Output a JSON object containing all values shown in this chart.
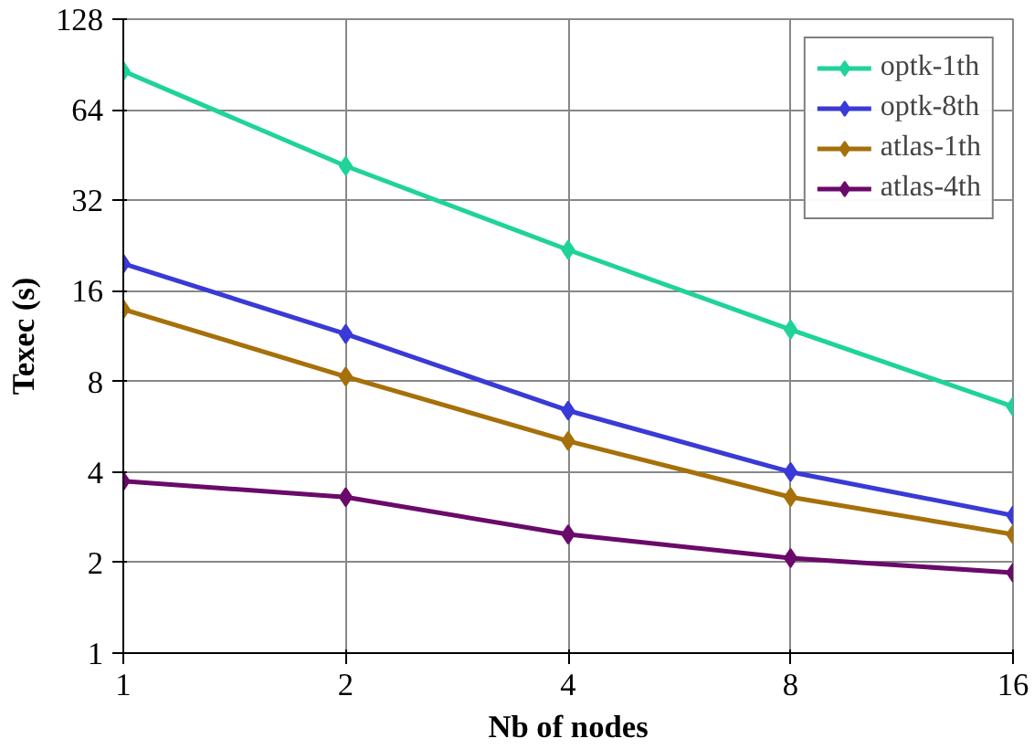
{
  "chart_data": {
    "type": "line",
    "xlabel": "Nb of nodes",
    "ylabel": "Texec (s)",
    "x": [
      1,
      2,
      4,
      8,
      16
    ],
    "log": "xy",
    "xlim": [
      1,
      16
    ],
    "ylim": [
      1,
      128
    ],
    "xticks": [
      1,
      2,
      4,
      8,
      16
    ],
    "yticks": [
      1,
      2,
      4,
      8,
      16,
      32,
      64,
      128
    ],
    "grid": true,
    "legend": "top right",
    "marker": "diamond",
    "line_style": "solid",
    "series": [
      {
        "name": "optk-1th",
        "color": "#1fd39a",
        "values": [
          86,
          41.6,
          21.9,
          11.9,
          6.6
        ]
      },
      {
        "name": "optk-8th",
        "color": "#3a3ad6",
        "values": [
          19.7,
          11.5,
          6.4,
          4.0,
          2.87
        ]
      },
      {
        "name": "atlas-1th",
        "color": "#a6700a",
        "values": [
          13.9,
          8.3,
          5.07,
          3.3,
          2.48
        ]
      },
      {
        "name": "atlas-4th",
        "color": "#6a0a6a",
        "values": [
          3.73,
          3.3,
          2.48,
          2.07,
          1.85
        ]
      }
    ]
  }
}
